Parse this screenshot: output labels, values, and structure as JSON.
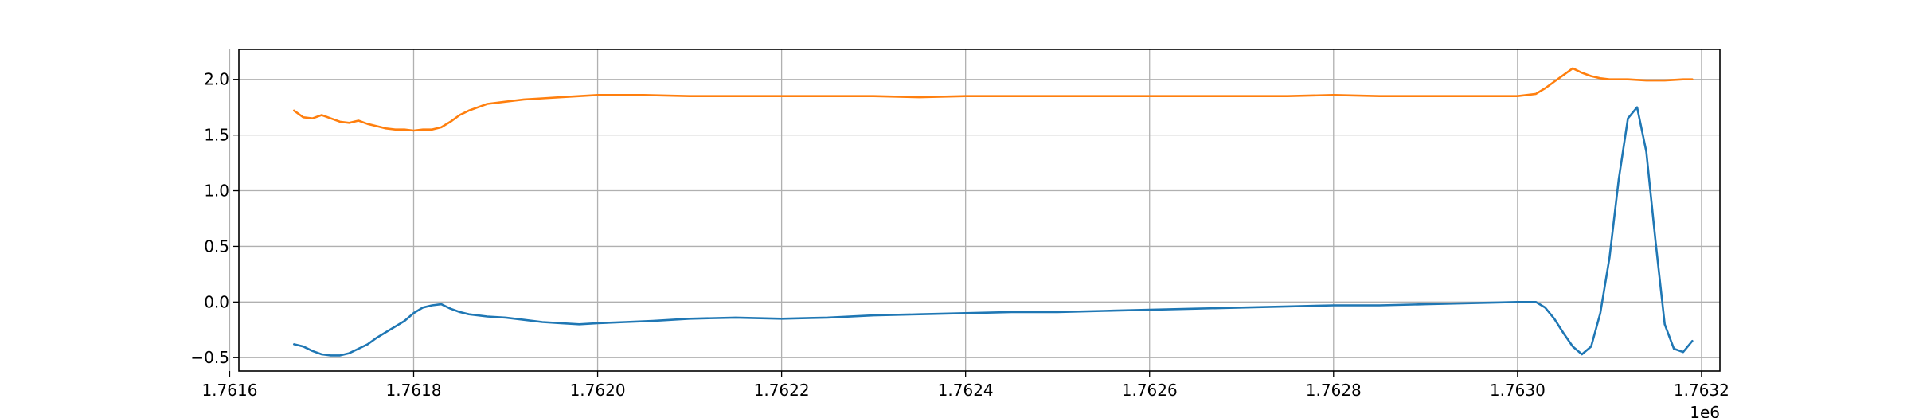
{
  "chart_data": {
    "type": "line",
    "title": "",
    "xlabel": "",
    "ylabel": "",
    "x_offset_label": "1e6",
    "xlim": [
      1.76161,
      1.76322
    ],
    "ylim": [
      -0.62,
      2.27
    ],
    "x_ticks": [
      1.7616,
      1.7618,
      1.762,
      1.7622,
      1.7624,
      1.7626,
      1.7628,
      1.763,
      1.7632
    ],
    "x_tick_labels": [
      "1.7616",
      "1.7618",
      "1.7620",
      "1.7622",
      "1.7624",
      "1.7626",
      "1.7628",
      "1.7630",
      "1.7632"
    ],
    "y_ticks": [
      -0.5,
      0.0,
      0.5,
      1.0,
      1.5,
      2.0
    ],
    "y_tick_labels": [
      "−0.5",
      "0.0",
      "0.5",
      "1.0",
      "1.5",
      "2.0"
    ],
    "grid": true,
    "legend": "none",
    "series": [
      {
        "color": "#1f77b4",
        "points": [
          [
            1.76167,
            -0.38
          ],
          [
            1.76168,
            -0.4
          ],
          [
            1.76169,
            -0.44
          ],
          [
            1.7617,
            -0.47
          ],
          [
            1.76171,
            -0.48
          ],
          [
            1.76172,
            -0.48
          ],
          [
            1.76173,
            -0.46
          ],
          [
            1.76174,
            -0.42
          ],
          [
            1.76175,
            -0.38
          ],
          [
            1.76176,
            -0.32
          ],
          [
            1.76177,
            -0.27
          ],
          [
            1.76178,
            -0.22
          ],
          [
            1.76179,
            -0.17
          ],
          [
            1.7618,
            -0.1
          ],
          [
            1.76181,
            -0.05
          ],
          [
            1.76182,
            -0.03
          ],
          [
            1.76183,
            -0.02
          ],
          [
            1.76184,
            -0.06
          ],
          [
            1.76185,
            -0.09
          ],
          [
            1.76186,
            -0.11
          ],
          [
            1.76188,
            -0.13
          ],
          [
            1.7619,
            -0.14
          ],
          [
            1.76192,
            -0.16
          ],
          [
            1.76194,
            -0.18
          ],
          [
            1.76196,
            -0.19
          ],
          [
            1.76198,
            -0.2
          ],
          [
            1.762,
            -0.19
          ],
          [
            1.76203,
            -0.18
          ],
          [
            1.76206,
            -0.17
          ],
          [
            1.7621,
            -0.15
          ],
          [
            1.76215,
            -0.14
          ],
          [
            1.7622,
            -0.15
          ],
          [
            1.76225,
            -0.14
          ],
          [
            1.7623,
            -0.12
          ],
          [
            1.76235,
            -0.11
          ],
          [
            1.7624,
            -0.1
          ],
          [
            1.76245,
            -0.09
          ],
          [
            1.7625,
            -0.09
          ],
          [
            1.76255,
            -0.08
          ],
          [
            1.7626,
            -0.07
          ],
          [
            1.76265,
            -0.06
          ],
          [
            1.7627,
            -0.05
          ],
          [
            1.76275,
            -0.04
          ],
          [
            1.7628,
            -0.03
          ],
          [
            1.76285,
            -0.03
          ],
          [
            1.7629,
            -0.02
          ],
          [
            1.76295,
            -0.01
          ],
          [
            1.763,
            0.0
          ],
          [
            1.76302,
            0.0
          ],
          [
            1.76303,
            -0.05
          ],
          [
            1.76304,
            -0.15
          ],
          [
            1.76305,
            -0.28
          ],
          [
            1.76306,
            -0.4
          ],
          [
            1.76307,
            -0.47
          ],
          [
            1.76308,
            -0.4
          ],
          [
            1.76309,
            -0.1
          ],
          [
            1.7631,
            0.4
          ],
          [
            1.76311,
            1.1
          ],
          [
            1.76312,
            1.65
          ],
          [
            1.76313,
            1.75
          ],
          [
            1.76314,
            1.35
          ],
          [
            1.76315,
            0.55
          ],
          [
            1.76316,
            -0.2
          ],
          [
            1.76317,
            -0.42
          ],
          [
            1.76318,
            -0.45
          ],
          [
            1.76319,
            -0.35
          ]
        ]
      },
      {
        "color": "#ff7f0e",
        "points": [
          [
            1.76167,
            1.72
          ],
          [
            1.76168,
            1.66
          ],
          [
            1.76169,
            1.65
          ],
          [
            1.7617,
            1.68
          ],
          [
            1.76171,
            1.65
          ],
          [
            1.76172,
            1.62
          ],
          [
            1.76173,
            1.61
          ],
          [
            1.76174,
            1.63
          ],
          [
            1.76175,
            1.6
          ],
          [
            1.76176,
            1.58
          ],
          [
            1.76177,
            1.56
          ],
          [
            1.76178,
            1.55
          ],
          [
            1.76179,
            1.55
          ],
          [
            1.7618,
            1.54
          ],
          [
            1.76181,
            1.55
          ],
          [
            1.76182,
            1.55
          ],
          [
            1.76183,
            1.57
          ],
          [
            1.76184,
            1.62
          ],
          [
            1.76185,
            1.68
          ],
          [
            1.76186,
            1.72
          ],
          [
            1.76187,
            1.75
          ],
          [
            1.76188,
            1.78
          ],
          [
            1.7619,
            1.8
          ],
          [
            1.76192,
            1.82
          ],
          [
            1.76194,
            1.83
          ],
          [
            1.76196,
            1.84
          ],
          [
            1.76198,
            1.85
          ],
          [
            1.762,
            1.86
          ],
          [
            1.76205,
            1.86
          ],
          [
            1.7621,
            1.85
          ],
          [
            1.76215,
            1.85
          ],
          [
            1.7622,
            1.85
          ],
          [
            1.76225,
            1.85
          ],
          [
            1.7623,
            1.85
          ],
          [
            1.76235,
            1.84
          ],
          [
            1.7624,
            1.85
          ],
          [
            1.76245,
            1.85
          ],
          [
            1.7625,
            1.85
          ],
          [
            1.76255,
            1.85
          ],
          [
            1.7626,
            1.85
          ],
          [
            1.76265,
            1.85
          ],
          [
            1.7627,
            1.85
          ],
          [
            1.76275,
            1.85
          ],
          [
            1.7628,
            1.86
          ],
          [
            1.76285,
            1.85
          ],
          [
            1.7629,
            1.85
          ],
          [
            1.76295,
            1.85
          ],
          [
            1.763,
            1.85
          ],
          [
            1.76302,
            1.87
          ],
          [
            1.76303,
            1.92
          ],
          [
            1.76304,
            1.98
          ],
          [
            1.76305,
            2.04
          ],
          [
            1.76306,
            2.1
          ],
          [
            1.76307,
            2.06
          ],
          [
            1.76308,
            2.03
          ],
          [
            1.76309,
            2.01
          ],
          [
            1.7631,
            2.0
          ],
          [
            1.76312,
            2.0
          ],
          [
            1.76314,
            1.99
          ],
          [
            1.76316,
            1.99
          ],
          [
            1.76318,
            2.0
          ],
          [
            1.76319,
            2.0
          ]
        ]
      }
    ]
  }
}
